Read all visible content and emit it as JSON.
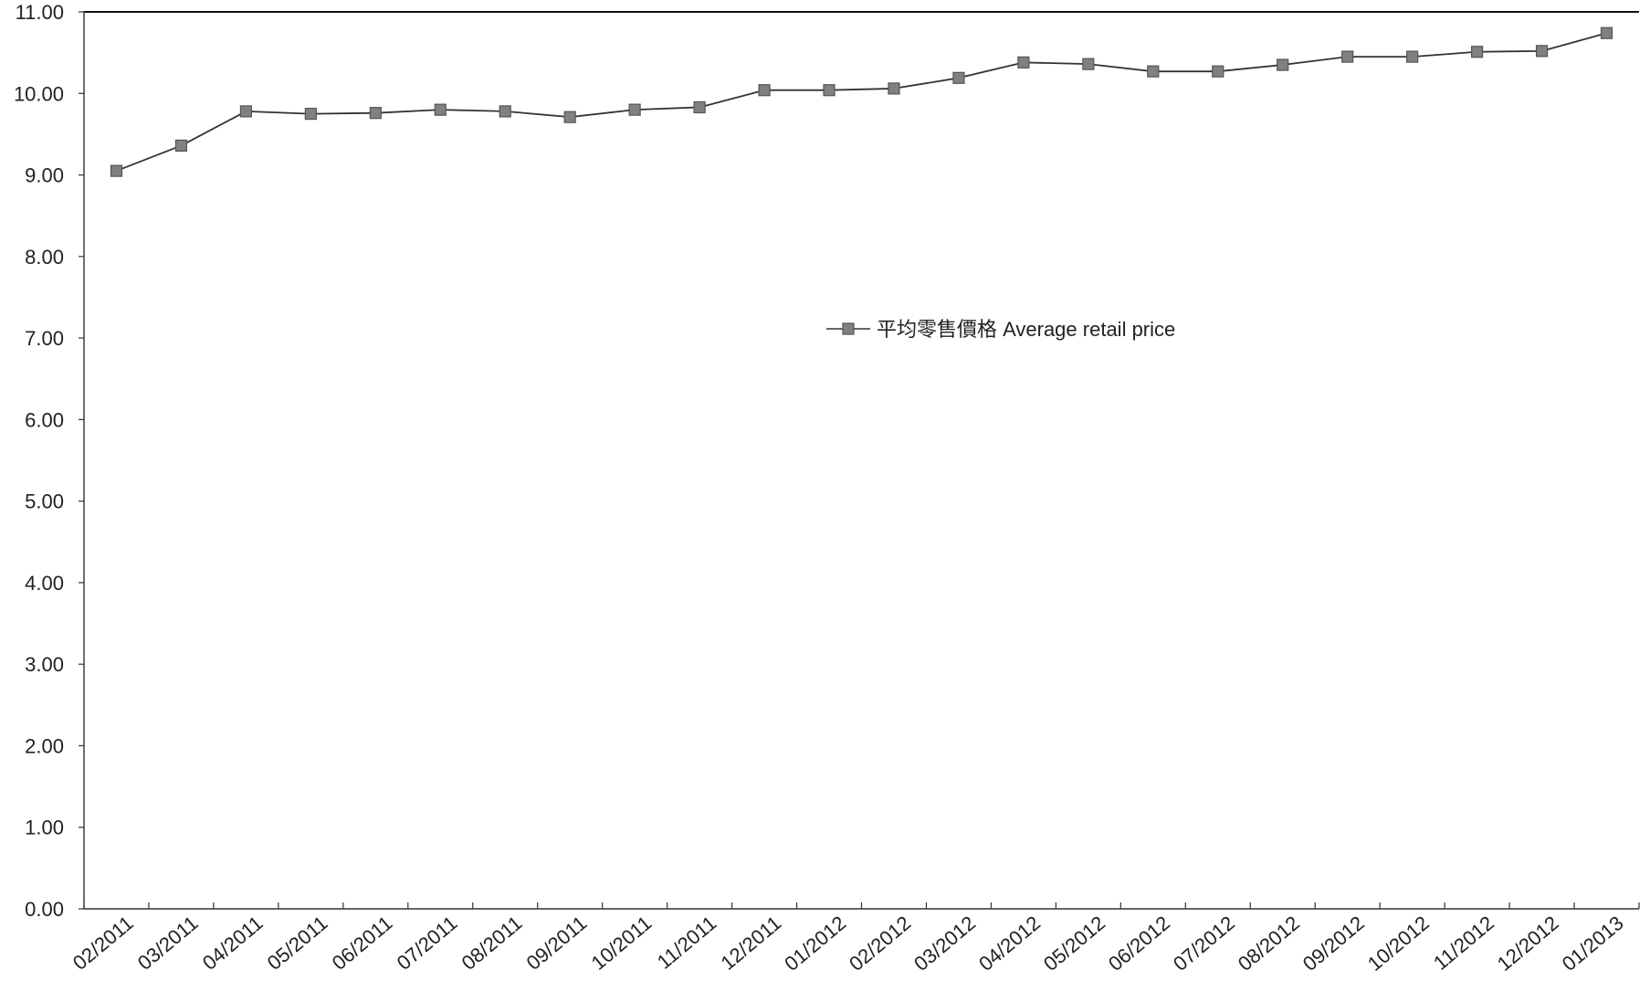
{
  "chart_data": {
    "type": "line",
    "title": "",
    "xlabel": "",
    "ylabel": "",
    "categories": [
      "02/2011",
      "03/2011",
      "04/2011",
      "05/2011",
      "06/2011",
      "07/2011",
      "08/2011",
      "09/2011",
      "10/2011",
      "11/2011",
      "12/2011",
      "01/2012",
      "02/2012",
      "03/2012",
      "04/2012",
      "05/2012",
      "06/2012",
      "07/2012",
      "08/2012",
      "09/2012",
      "10/2012",
      "11/2012",
      "12/2012",
      "01/2013"
    ],
    "series": [
      {
        "name": "平均零售價格 Average retail price",
        "values": [
          9.05,
          9.36,
          9.78,
          9.75,
          9.76,
          9.8,
          9.78,
          9.71,
          9.8,
          9.83,
          10.04,
          10.04,
          10.06,
          10.19,
          10.38,
          10.36,
          10.27,
          10.27,
          10.35,
          10.45,
          10.45,
          10.51,
          10.52,
          10.74
        ],
        "color": "#808080",
        "marker": "square"
      }
    ],
    "ylim": [
      0,
      11
    ],
    "yticks": [
      0,
      1,
      2,
      3,
      4,
      5,
      6,
      7,
      8,
      9,
      10,
      11
    ],
    "ytick_labels": [
      "0.00",
      "1.00",
      "2.00",
      "3.00",
      "4.00",
      "5.00",
      "6.00",
      "7.00",
      "8.00",
      "9.00",
      "10.00",
      "11.00"
    ],
    "grid": false,
    "legend_position": "center-right inside plot"
  }
}
